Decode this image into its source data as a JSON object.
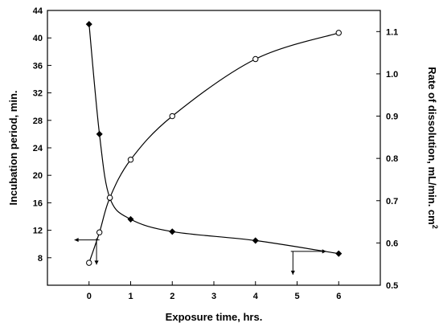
{
  "chart_data": {
    "type": "scatter",
    "xlabel": "Exposure time, hrs.",
    "ylabel_left": "Incubation period, min.",
    "ylabel_right": "Rate of dissolution, mL/min. cm",
    "ylabel_right_superscript": "2",
    "xlim": [
      -1.0,
      7.0
    ],
    "ylim_left": [
      4,
      44
    ],
    "ylim_right": [
      0.5,
      1.15
    ],
    "x_ticks": [
      0,
      1,
      2,
      3,
      4,
      5,
      6
    ],
    "y_left_ticks": [
      8,
      12,
      16,
      20,
      24,
      28,
      32,
      36,
      40,
      44
    ],
    "y_right_ticks": [
      0.5,
      0.6,
      0.7,
      0.8,
      0.9,
      1.0,
      1.1
    ],
    "grid": false,
    "legend": "none",
    "series": [
      {
        "axis": "left",
        "marker": "filled-diamond",
        "color": "#000000",
        "x": [
          0,
          0.25,
          0.5,
          1,
          2,
          4,
          6
        ],
        "y": [
          42,
          26,
          16.7,
          13.6,
          11.8,
          10.5,
          8.6
        ],
        "arrow_direction": "left"
      },
      {
        "axis": "right",
        "marker": "open-circle",
        "color": "#000000",
        "x": [
          0,
          0.25,
          0.5,
          1,
          2,
          4,
          6
        ],
        "y": [
          0.553,
          0.625,
          0.707,
          0.797,
          0.9,
          1.035,
          1.097
        ],
        "arrow_direction": "right"
      }
    ]
  }
}
